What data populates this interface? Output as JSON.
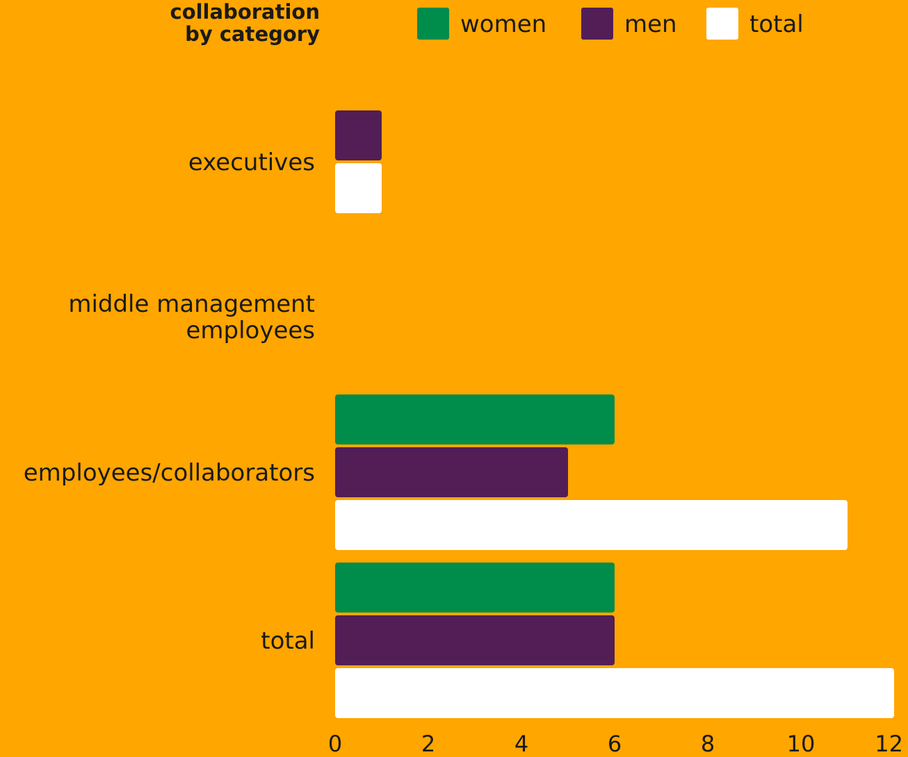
{
  "chart_data": {
    "type": "bar",
    "orientation": "horizontal",
    "title": "collaboration\nby category",
    "categories": [
      "executives",
      "middle management\nemployees",
      "employees/collaborators",
      "total"
    ],
    "series": [
      {
        "name": "women",
        "color": "#008C4A",
        "values": [
          0,
          0,
          6,
          6
        ]
      },
      {
        "name": "men",
        "color": "#521E55",
        "values": [
          1,
          0,
          5,
          6
        ]
      },
      {
        "name": "total",
        "color": "#FFFFFF",
        "values": [
          1,
          0,
          11,
          12
        ]
      }
    ],
    "xlim": [
      0,
      12
    ],
    "xticks": [
      0,
      2,
      4,
      6,
      8,
      10,
      12
    ],
    "legend_position": "top",
    "grid": false,
    "background": "#FFA600"
  }
}
